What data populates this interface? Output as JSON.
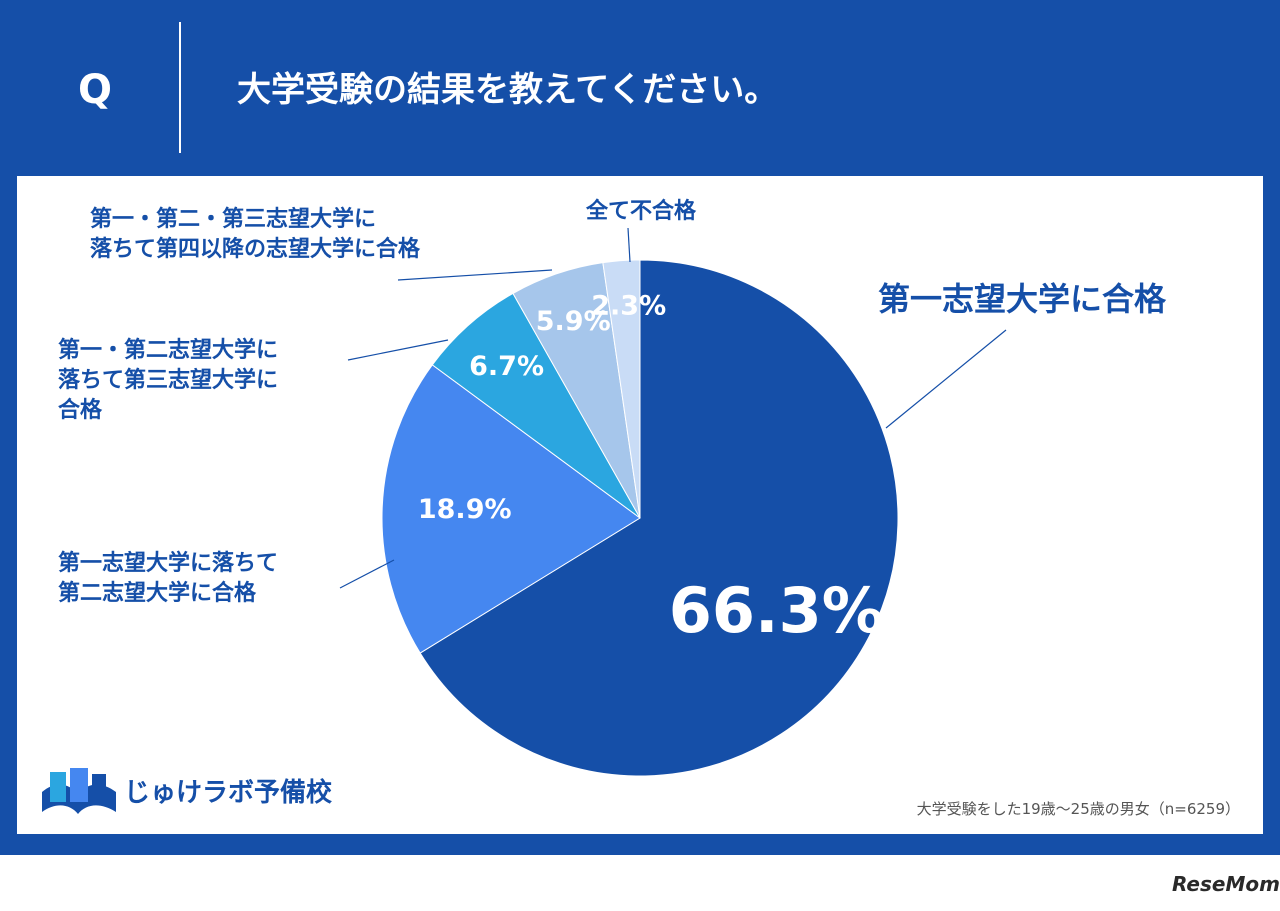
{
  "header": {
    "q_label": "Q",
    "question": "大学受験の結果を教えてください。"
  },
  "colors": {
    "header_band": "#154fa8",
    "slice_1": "#154fa8",
    "slice_2": "#4587f0",
    "slice_3": "#2ba6e0",
    "slice_4": "#a6c6eb",
    "slice_5": "#c9dcf6",
    "label_text": "#154fa8"
  },
  "chart_data": {
    "type": "pie",
    "slices": [
      {
        "value": 66.3,
        "value_label": "66.3%",
        "label_lines": [
          "第一志望大学に合格"
        ]
      },
      {
        "value": 18.9,
        "value_label": "18.9%",
        "label_lines": [
          "第一志望大学に落ちて",
          "第二志望大学に合格"
        ]
      },
      {
        "value": 6.7,
        "value_label": "6.7%",
        "label_lines": [
          "第一・第二志望大学に",
          "落ちて第三志望大学に",
          "合格"
        ]
      },
      {
        "value": 5.9,
        "value_label": "5.9%",
        "label_lines": [
          "第一・第二・第三志望大学に",
          "落ちて第四以降の志望大学に合格"
        ]
      },
      {
        "value": 2.3,
        "value_label": "2.3%",
        "label_lines": [
          "全て不合格"
        ]
      }
    ]
  },
  "footnote": "大学受験をした19歳～25歳の男女（n=6259）",
  "logo": {
    "text": "じゅけラボ予備校",
    "icon": "book-logo-icon"
  },
  "watermark": "ReseMom"
}
